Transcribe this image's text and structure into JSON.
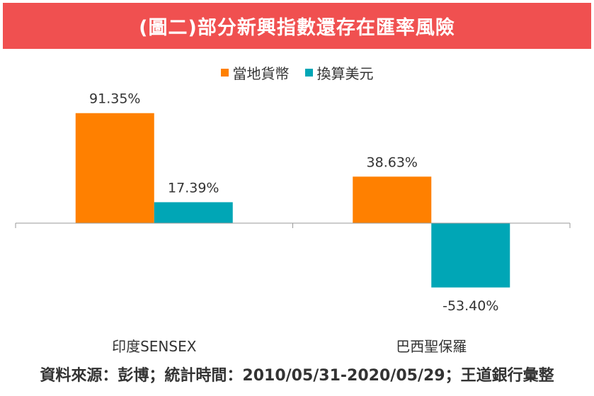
{
  "header": {
    "title": "(圖二)部分新興指數還存在匯率風險"
  },
  "footer": {
    "source": "資料來源：彭博；統計時間：2010/05/31-2020/05/29；王道銀行彙整"
  },
  "colors": {
    "title_bg": "#f05050",
    "local_currency": "#ff8000",
    "usd_converted": "#00a6b6",
    "axis": "#999999",
    "text": "#333333"
  },
  "chart_data": {
    "type": "bar",
    "categories": [
      "印度SENSEX",
      "巴西聖保羅"
    ],
    "series": [
      {
        "name": "當地貨幣",
        "values": [
          91.35,
          38.63
        ],
        "labels": [
          "91.35%",
          "38.63%"
        ]
      },
      {
        "name": "換算美元",
        "values": [
          17.39,
          -53.4
        ],
        "labels": [
          "17.39%",
          "-53.40%"
        ]
      }
    ],
    "ylim": [
      -70,
      100
    ],
    "unit": "%",
    "grid": false,
    "legend_position": "top-center"
  }
}
